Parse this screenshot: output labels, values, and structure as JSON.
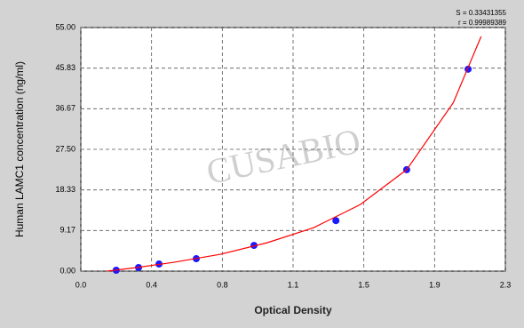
{
  "chart_data": {
    "type": "scatter",
    "y_label": "Human LAMC1 concentration (ng/ml)",
    "x_label": "Optical Density",
    "annotations": [
      "S = 0.33431355",
      "r = 0.99989389"
    ],
    "watermark": "CUSABIO",
    "xlim": [
      0,
      2.28
    ],
    "ylim": [
      0,
      55
    ],
    "xticks": [
      {
        "value": 0,
        "label": "0.0"
      },
      {
        "value": 0.38,
        "label": "0.4"
      },
      {
        "value": 0.76,
        "label": "0.8"
      },
      {
        "value": 1.14,
        "label": "1.1"
      },
      {
        "value": 1.52,
        "label": "1.5"
      },
      {
        "value": 1.9,
        "label": "1.9"
      },
      {
        "value": 2.28,
        "label": "2.3"
      }
    ],
    "yticks": [
      {
        "value": 0,
        "label": "0.00"
      },
      9.17,
      18.33,
      {
        "value": 27.5,
        "label": "27.50"
      },
      36.67,
      45.83,
      {
        "value": 55,
        "label": "55.00"
      }
    ],
    "grid": true,
    "series": [
      {
        "color": "#1a1aff",
        "x": [
          0.19,
          0.31,
          0.42,
          0.62,
          0.93,
          1.37,
          1.75,
          2.08
        ],
        "values": [
          0.2,
          0.8,
          1.6,
          2.8,
          5.8,
          11.4,
          22.9,
          45.6
        ]
      },
      {
        "color": "#ff0000",
        "line": true,
        "x": [
          0.14,
          0.3,
          0.5,
          0.75,
          1.0,
          1.25,
          1.5,
          1.75,
          2.0,
          2.15
        ],
        "values": [
          0,
          0.8,
          2.0,
          3.8,
          6.4,
          9.8,
          15.0,
          22.9,
          38,
          53
        ]
      }
    ]
  }
}
